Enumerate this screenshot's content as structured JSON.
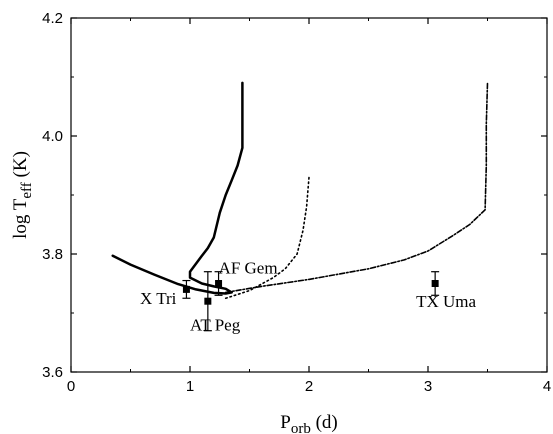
{
  "chart_data": {
    "type": "scatter",
    "xlabel": {
      "main": "P",
      "sub": "orb",
      "rest": " (d)"
    },
    "ylabel": {
      "main": "log T",
      "sub": "eff",
      "rest": " (K)"
    },
    "xlim": [
      0,
      4
    ],
    "ylim": [
      3.6,
      4.2
    ],
    "xticks": [
      0,
      1,
      2,
      3,
      4
    ],
    "xtick_labels": [
      "0",
      "1",
      "2",
      "3",
      "4"
    ],
    "yticks": [
      3.6,
      3.8,
      4.0,
      4.2
    ],
    "ytick_labels": [
      "3.6",
      "3.8",
      "4.0",
      "4.2"
    ],
    "grid": false,
    "legend": false,
    "points": [
      {
        "label": "X Tri",
        "x": 0.97,
        "y": 3.74,
        "yerr": 0.015
      },
      {
        "label": "AF Gem",
        "x": 1.24,
        "y": 3.75,
        "yerr": 0.02
      },
      {
        "label": "AT Peg",
        "x": 1.15,
        "y": 3.72,
        "yerr": 0.05
      },
      {
        "label": "TX Uma",
        "x": 3.06,
        "y": 3.75,
        "yerr": 0.02
      }
    ],
    "annotations": [
      {
        "text": "X Tri",
        "x": 0.58,
        "y": 3.715
      },
      {
        "text": "AF Gem",
        "x": 1.24,
        "y": 3.767
      },
      {
        "text": "AT Peg",
        "x": 1.0,
        "y": 3.67
      },
      {
        "text": "TX Uma",
        "x": 2.9,
        "y": 3.71
      }
    ],
    "series": [
      {
        "style": "solid",
        "points": [
          [
            0.35,
            3.797
          ],
          [
            0.5,
            3.782
          ],
          [
            0.7,
            3.765
          ],
          [
            0.9,
            3.749
          ],
          [
            1.05,
            3.74
          ],
          [
            1.2,
            3.734
          ],
          [
            1.3,
            3.733
          ],
          [
            1.35,
            3.735
          ],
          [
            1.3,
            3.741
          ],
          [
            1.2,
            3.745
          ],
          [
            1.1,
            3.75
          ],
          [
            1.0,
            3.76
          ],
          [
            1.0,
            3.77
          ],
          [
            1.1,
            3.797
          ],
          [
            1.15,
            3.81
          ],
          [
            1.2,
            3.828
          ],
          [
            1.25,
            3.87
          ],
          [
            1.3,
            3.9
          ],
          [
            1.35,
            3.925
          ],
          [
            1.4,
            3.95
          ],
          [
            1.44,
            3.98
          ],
          [
            1.44,
            4.09
          ]
        ]
      },
      {
        "style": "dotted",
        "points": [
          [
            1.3,
            3.725
          ],
          [
            1.5,
            3.738
          ],
          [
            1.7,
            3.76
          ],
          [
            1.8,
            3.775
          ],
          [
            1.9,
            3.8
          ],
          [
            1.95,
            3.84
          ],
          [
            1.98,
            3.88
          ],
          [
            2.0,
            3.93
          ]
        ]
      },
      {
        "style": "dashdot",
        "points": [
          [
            1.3,
            3.735
          ],
          [
            1.6,
            3.745
          ],
          [
            2.0,
            3.757
          ],
          [
            2.5,
            3.775
          ],
          [
            2.8,
            3.79
          ],
          [
            3.0,
            3.805
          ],
          [
            3.2,
            3.83
          ],
          [
            3.35,
            3.85
          ],
          [
            3.48,
            3.875
          ],
          [
            3.49,
            3.95
          ],
          [
            3.49,
            4.02
          ],
          [
            3.5,
            4.09
          ]
        ]
      }
    ]
  }
}
